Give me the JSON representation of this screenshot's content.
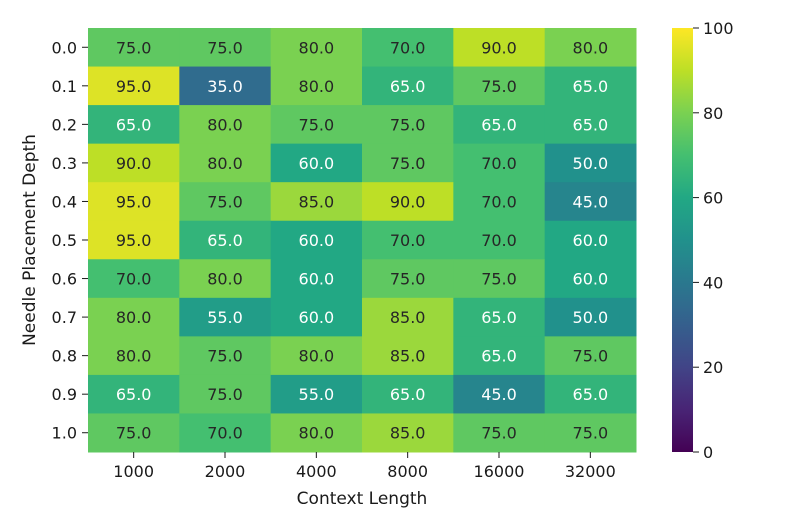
{
  "chart_data": {
    "type": "heatmap",
    "xlabel": "Context Length",
    "ylabel": "Needle Placement Depth",
    "x_categories": [
      "1000",
      "2000",
      "4000",
      "8000",
      "16000",
      "32000"
    ],
    "y_categories": [
      "0.0",
      "0.1",
      "0.2",
      "0.3",
      "0.4",
      "0.5",
      "0.6",
      "0.7",
      "0.8",
      "0.9",
      "1.0"
    ],
    "values": [
      [
        75.0,
        75.0,
        80.0,
        70.0,
        90.0,
        80.0
      ],
      [
        95.0,
        35.0,
        80.0,
        65.0,
        75.0,
        65.0
      ],
      [
        65.0,
        80.0,
        75.0,
        75.0,
        65.0,
        65.0
      ],
      [
        90.0,
        80.0,
        60.0,
        75.0,
        70.0,
        50.0
      ],
      [
        95.0,
        75.0,
        85.0,
        90.0,
        70.0,
        45.0
      ],
      [
        95.0,
        65.0,
        60.0,
        70.0,
        70.0,
        60.0
      ],
      [
        70.0,
        80.0,
        60.0,
        75.0,
        75.0,
        60.0
      ],
      [
        80.0,
        55.0,
        60.0,
        85.0,
        65.0,
        50.0
      ],
      [
        80.0,
        75.0,
        80.0,
        85.0,
        65.0,
        75.0
      ],
      [
        65.0,
        75.0,
        55.0,
        65.0,
        45.0,
        65.0
      ],
      [
        75.0,
        70.0,
        80.0,
        85.0,
        75.0,
        75.0
      ]
    ],
    "value_labels": [
      [
        "75.0",
        "75.0",
        "80.0",
        "70.0",
        "90.0",
        "80.0"
      ],
      [
        "95.0",
        "35.0",
        "80.0",
        "65.0",
        "75.0",
        "65.0"
      ],
      [
        "65.0",
        "80.0",
        "75.0",
        "75.0",
        "65.0",
        "65.0"
      ],
      [
        "90.0",
        "80.0",
        "60.0",
        "75.0",
        "70.0",
        "50.0"
      ],
      [
        "95.0",
        "75.0",
        "85.0",
        "90.0",
        "70.0",
        "45.0"
      ],
      [
        "95.0",
        "65.0",
        "60.0",
        "70.0",
        "70.0",
        "60.0"
      ],
      [
        "70.0",
        "80.0",
        "60.0",
        "75.0",
        "75.0",
        "60.0"
      ],
      [
        "80.0",
        "55.0",
        "60.0",
        "85.0",
        "65.0",
        "50.0"
      ],
      [
        "80.0",
        "75.0",
        "80.0",
        "85.0",
        "65.0",
        "75.0"
      ],
      [
        "65.0",
        "75.0",
        "55.0",
        "65.0",
        "45.0",
        "65.0"
      ],
      [
        "75.0",
        "70.0",
        "80.0",
        "85.0",
        "75.0",
        "75.0"
      ]
    ],
    "colormap": "viridis",
    "vmin": 0,
    "vmax": 100,
    "colorbar_ticks": [
      "0",
      "20",
      "40",
      "60",
      "80",
      "100"
    ],
    "colorbar_position": "right",
    "grid": false
  }
}
